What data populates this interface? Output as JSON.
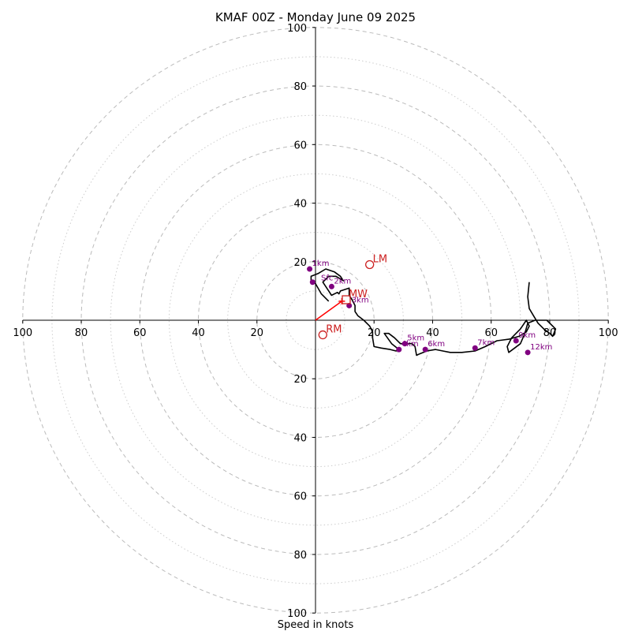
{
  "chart_data": {
    "type": "line",
    "title": "KMAF 00Z - Monday June 09 2025",
    "xlabel": "Speed in knots",
    "ylabel": "",
    "xlim": [
      -100,
      100
    ],
    "ylim": [
      -100,
      100
    ],
    "rings": {
      "major": [
        20,
        40,
        60,
        80,
        100
      ],
      "minor": [
        10,
        30,
        50,
        70,
        90
      ]
    },
    "x_tick_labels": [
      "100",
      "80",
      "60",
      "40",
      "20",
      "20",
      "40",
      "60",
      "80",
      "100"
    ],
    "x_tick_values": [
      -100,
      -80,
      -60,
      -40,
      -20,
      20,
      40,
      60,
      80,
      100
    ],
    "y_tick_labels": [
      "100",
      "80",
      "60",
      "40",
      "20",
      "20",
      "40",
      "60",
      "80",
      "100"
    ],
    "y_tick_values": [
      100,
      80,
      60,
      40,
      20,
      -20,
      -40,
      -60,
      -80,
      -100
    ],
    "grid": true,
    "hodograph": {
      "u": [
        4.5,
        2,
        0,
        -1.5,
        -1.5,
        1,
        3.5,
        6.5,
        8.5,
        9.5,
        7,
        4.5,
        2.5,
        5.5,
        7.5,
        8,
        8.5,
        11.5,
        11.5,
        12.5,
        13.5,
        13.5,
        14.5,
        16.5,
        18.5,
        19.5,
        19.5,
        20,
        22.5,
        25.5,
        27.5,
        28.5,
        26,
        23.5,
        25,
        27,
        29,
        31,
        32,
        33,
        34,
        34.5,
        35.5,
        38,
        41,
        43.5,
        46,
        50,
        54.5,
        58,
        62,
        66,
        69.5,
        72,
        73,
        72,
        70,
        67,
        65.5,
        66,
        68,
        70,
        71.5,
        72.5,
        75,
        79,
        82,
        81,
        80,
        78,
        76,
        74.5,
        73,
        72.5,
        73,
        73
      ],
      "v": [
        6.5,
        9,
        12.5,
        13.5,
        15,
        16,
        17.5,
        16.5,
        15,
        13.5,
        15,
        15,
        13,
        8.5,
        9.5,
        9,
        10,
        11,
        8.5,
        7,
        5,
        3,
        1.5,
        0,
        -2,
        -4,
        -6,
        -9,
        -9.5,
        -10,
        -10.5,
        -10,
        -8,
        -4.5,
        -4.5,
        -6,
        -8,
        -8,
        -8,
        -8,
        -9,
        -12,
        -11.5,
        -10.5,
        -10,
        -10.5,
        -11,
        -11,
        -10.5,
        -9,
        -7,
        -6.5,
        -5.5,
        -4,
        -2,
        0,
        -3,
        -6,
        -9,
        -11,
        -9.5,
        -8,
        -4.5,
        -1,
        0,
        0,
        -3,
        -5.5,
        -4.5,
        -3,
        -1,
        1.5,
        4,
        8,
        13,
        13
      ]
    },
    "height_points": [
      {
        "label": "1km",
        "u": -2,
        "v": 17.5
      },
      {
        "label": "",
        "u": -1,
        "v": 13
      },
      {
        "label": "2km",
        "u": 5.5,
        "v": 11.5
      },
      {
        "label": "3km",
        "u": 11.5,
        "v": 5
      },
      {
        "label": "5km",
        "u": 30.5,
        "v": -8
      },
      {
        "label": "4km",
        "u": 28.5,
        "v": -10
      },
      {
        "label": "6km",
        "u": 37.5,
        "v": -10
      },
      {
        "label": "7km",
        "u": 54.5,
        "v": -9.5
      },
      {
        "label": "9km",
        "u": 68.5,
        "v": -7
      },
      {
        "label": "12km",
        "u": 72.5,
        "v": -11
      }
    ],
    "storm_motion": {
      "labels": {
        "mw": "MW",
        "lm": "LM",
        "rm": "RM",
        "sfc": "Sfc"
      },
      "mw": {
        "u": 10.5,
        "v": 7
      },
      "lm": {
        "u": 18.5,
        "v": 19
      },
      "rm": {
        "u": 2.5,
        "v": -5
      },
      "shear_vector_end": {
        "u": 9,
        "v": 6.5
      }
    },
    "colors": {
      "hodograph": "#000000",
      "height_points": "#800080",
      "storm_motion": "#cc2020",
      "shear_vector": "#ff0000",
      "grid": "#bbbbbb"
    }
  }
}
